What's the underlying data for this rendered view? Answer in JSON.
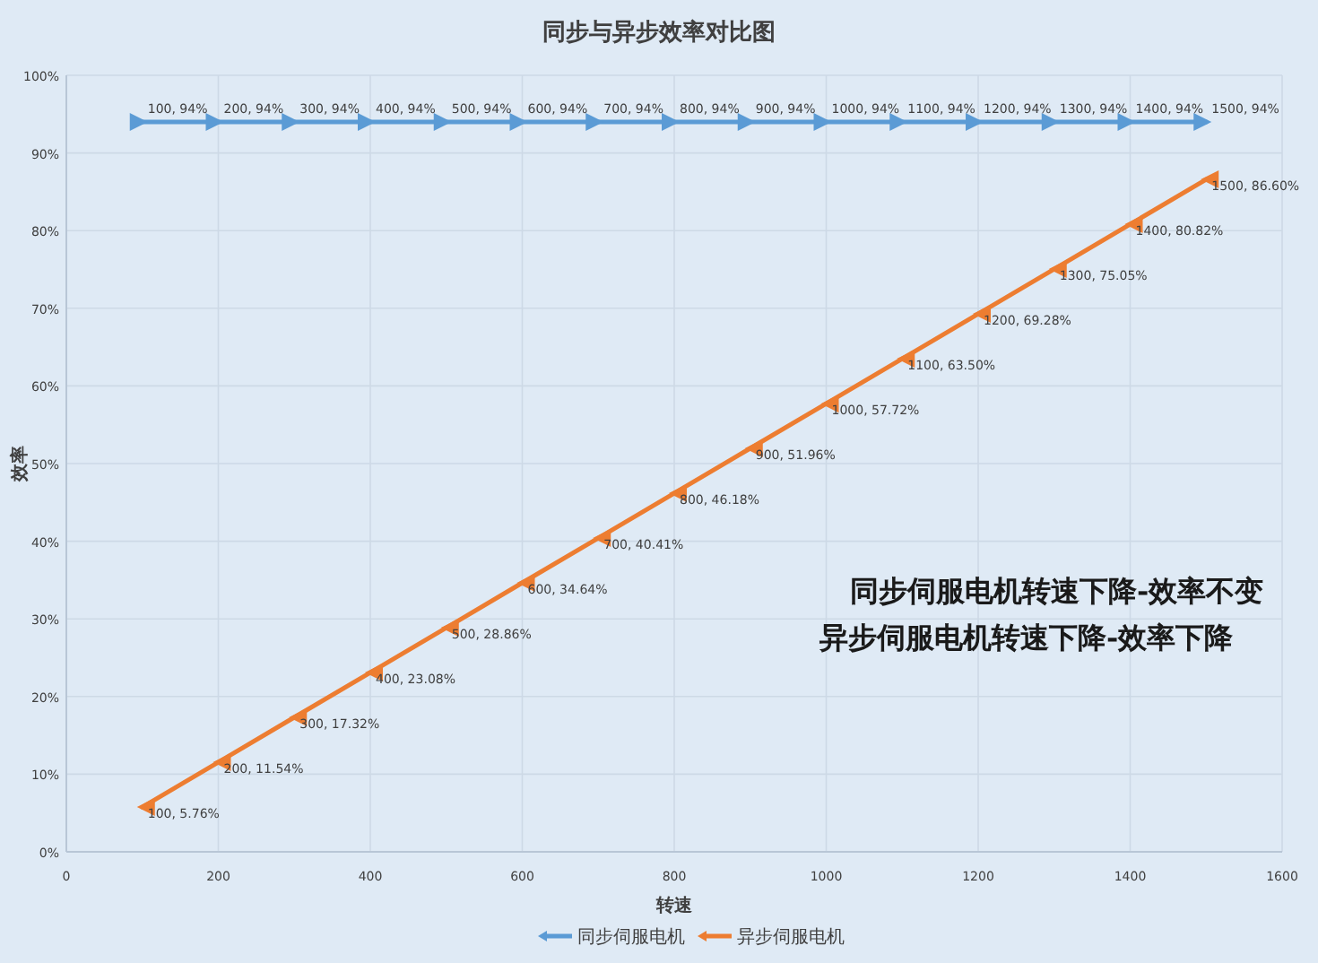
{
  "chart_data": {
    "type": "line",
    "title": "同步与异步效率对比图",
    "xlabel": "转速",
    "ylabel": "效率",
    "xlim": [
      0,
      1600
    ],
    "xticks": [
      0,
      200,
      400,
      600,
      800,
      1000,
      1200,
      1400,
      1600
    ],
    "ylim": [
      0,
      100
    ],
    "yticks": [
      {
        "value": 0,
        "label": "0%"
      },
      {
        "value": 10,
        "label": "10%"
      },
      {
        "value": 20,
        "label": "20%"
      },
      {
        "value": 30,
        "label": "30%"
      },
      {
        "value": 40,
        "label": "40%"
      },
      {
        "value": 50,
        "label": "50%"
      },
      {
        "value": 60,
        "label": "60%"
      },
      {
        "value": 70,
        "label": "70%"
      },
      {
        "value": 80,
        "label": "80%"
      },
      {
        "value": 90,
        "label": "90%"
      },
      {
        "value": 100,
        "label": "100%"
      }
    ],
    "grid": true,
    "legend": "bottom",
    "marker": "triangle",
    "series": [
      {
        "name": "同步伺服电机",
        "color": "#5b9bd5",
        "x": [
          100,
          200,
          300,
          400,
          500,
          600,
          700,
          800,
          900,
          1000,
          1100,
          1200,
          1300,
          1400,
          1500
        ],
        "values": [
          94,
          94,
          94,
          94,
          94,
          94,
          94,
          94,
          94,
          94,
          94,
          94,
          94,
          94,
          94
        ],
        "value_labels": [
          "100, 94%",
          "200, 94%",
          "300, 94%",
          "400, 94%",
          "500, 94%",
          "600, 94%",
          "700, 94%",
          "800, 94%",
          "900, 94%",
          "1000, 94%",
          "1100, 94%",
          "1200, 94%",
          "1300, 94%",
          "1400, 94%",
          "1500, 94%"
        ]
      },
      {
        "name": "异步伺服电机",
        "color": "#ed7d31",
        "x": [
          1500,
          1400,
          1300,
          1200,
          1100,
          1000,
          900,
          800,
          700,
          600,
          500,
          400,
          300,
          200,
          100
        ],
        "values": [
          86.6,
          80.82,
          75.05,
          69.28,
          63.5,
          57.72,
          51.96,
          46.18,
          40.41,
          34.64,
          28.86,
          23.08,
          17.32,
          11.54,
          5.76
        ],
        "value_labels": [
          "1500, 86.60%",
          "1400, 80.82%",
          "1300, 75.05%",
          "1200, 69.28%",
          "1100, 63.50%",
          "1000, 57.72%",
          "900, 51.96%",
          "800, 46.18%",
          "700, 40.41%",
          "600, 34.64%",
          "500, 28.86%",
          "400, 23.08%",
          "300, 17.32%",
          "200, 11.54%",
          "100, 5.76%"
        ]
      }
    ],
    "annotations": [
      "同步伺服电机转速下降-效率不变",
      "异步伺服电机转速下降-效率下降"
    ]
  }
}
